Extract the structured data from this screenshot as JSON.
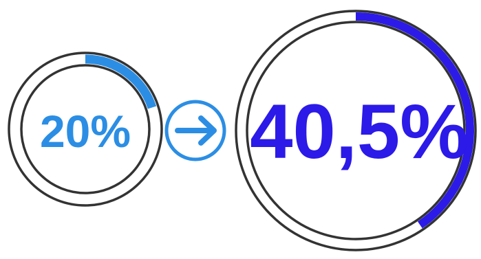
{
  "gauges": {
    "small": {
      "label": "20%",
      "progress": 0.2,
      "accent_color": "#2b8ee4"
    },
    "large": {
      "label": "40,5%",
      "progress": 0.405,
      "accent_color": "#2b1ae8"
    }
  },
  "connector": {
    "icon": "arrow-right-circle-icon",
    "color": "#2b8ee4"
  },
  "colors": {
    "ring_outline": "#333333",
    "ring_fill": "#ffffff"
  }
}
